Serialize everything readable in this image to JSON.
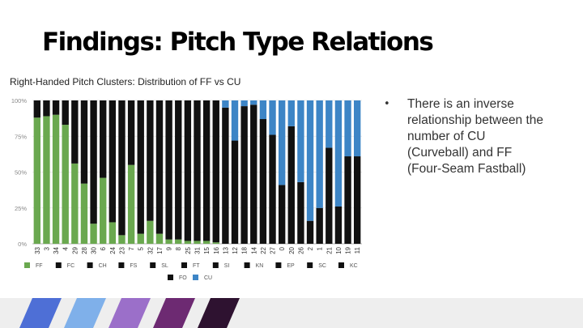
{
  "slide": {
    "title": "Findings: Pitch Type Relations",
    "bullet": "There is an inverse relationship between the number of CU (Curveball) and FF (Four-Seam Fastball)"
  },
  "chart_data": {
    "type": "bar",
    "stacked": true,
    "normalized": true,
    "title": "Right-Handed Pitch Clusters: Distribution of FF vs CU",
    "categories": [
      "33",
      "3",
      "34",
      "4",
      "29",
      "28",
      "30",
      "6",
      "24",
      "23",
      "7",
      "5",
      "32",
      "17",
      "9",
      "8",
      "25",
      "31",
      "15",
      "16",
      "13",
      "12",
      "18",
      "14",
      "22",
      "27",
      "0",
      "20",
      "26",
      "2",
      "1",
      "21",
      "10",
      "19",
      "11"
    ],
    "y_ticks": [
      "0%",
      "25%",
      "50%",
      "75%",
      "100%"
    ],
    "ylim": [
      0,
      100
    ],
    "series": [
      {
        "name": "FF",
        "color": "#6aa84f",
        "values": [
          88,
          89,
          90,
          83,
          56,
          42,
          14,
          46,
          15,
          6,
          55,
          7,
          16,
          7,
          3,
          3,
          2,
          2,
          2,
          1,
          0,
          0,
          0,
          0,
          0,
          0,
          0,
          0,
          0,
          0,
          0,
          0,
          0,
          0,
          0
        ]
      },
      {
        "name": "FC",
        "color": "#111111",
        "values": [
          12,
          11,
          10,
          17,
          44,
          58,
          86,
          54,
          85,
          94,
          45,
          93,
          84,
          93,
          97,
          97,
          98,
          98,
          98,
          99,
          95,
          72,
          96,
          97,
          87,
          76,
          41,
          82,
          43,
          16,
          25,
          67,
          26,
          61,
          61
        ]
      },
      {
        "name": "CU",
        "color": "#3d85c6",
        "values": [
          0,
          0,
          0,
          0,
          0,
          0,
          0,
          0,
          0,
          0,
          0,
          0,
          0,
          0,
          0,
          0,
          0,
          0,
          0,
          0,
          5,
          28,
          4,
          3,
          13,
          24,
          59,
          18,
          57,
          84,
          75,
          33,
          74,
          39,
          39
        ]
      }
    ],
    "legend": [
      "FF",
      "FC",
      "CH",
      "FS",
      "SL",
      "FT",
      "SI",
      "KN",
      "EP",
      "SC",
      "KC",
      "FO",
      "CU"
    ],
    "legend_placement": "bottom",
    "grid": true
  },
  "colors": {
    "ff": "#6aa84f",
    "cu": "#3d85c6",
    "other": "#111111",
    "decor": [
      "#4e6fd6",
      "#7fb0ea",
      "#9b6fc9",
      "#6d2a72",
      "#2e1230"
    ]
  }
}
